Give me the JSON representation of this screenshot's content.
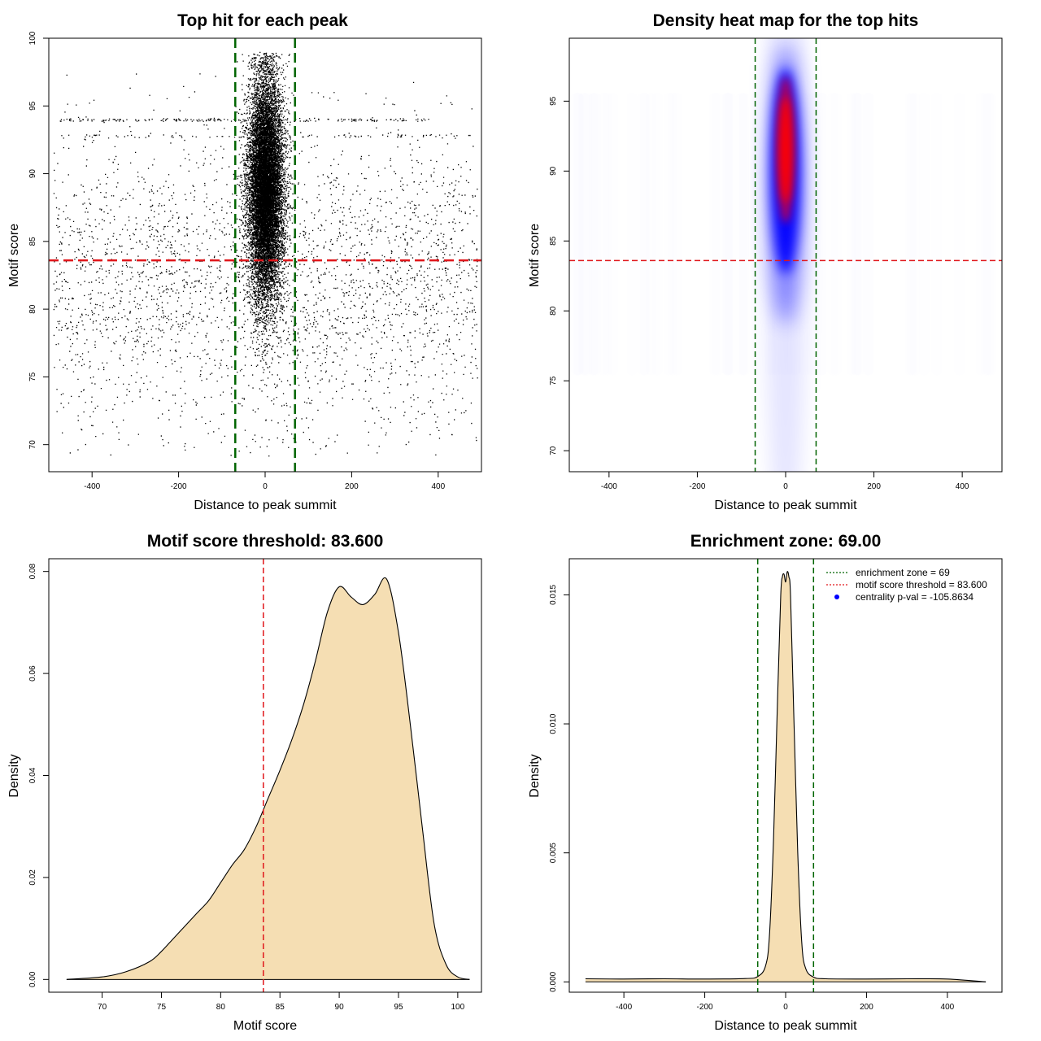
{
  "colors": {
    "threshold_line": "#e0161b",
    "zone_line": "#006400",
    "density_fill": "#f5deb3",
    "heat_low": "#0000ff",
    "heat_high": "#ff0000",
    "points": "#000000"
  },
  "chart_data": [
    {
      "id": "scatter",
      "type": "scatter",
      "title": "Top hit for each peak",
      "xlabel": "Distance to peak summit",
      "ylabel": "Motif score",
      "xlim": [
        -500,
        500
      ],
      "ylim": [
        68,
        100
      ],
      "xticks": [
        "-400",
        "-200",
        "0",
        "200",
        "400"
      ],
      "yticks": [
        "70",
        "75",
        "80",
        "85",
        "90",
        "95",
        "100"
      ],
      "point_count_approx": 22000,
      "background_points": 3000,
      "central_cluster": {
        "x_mean": 0,
        "x_sd": 20,
        "y_mean": 89,
        "y_sd": 4
      },
      "hline": 83.6,
      "vlines": [
        -69,
        69
      ],
      "grid": false
    },
    {
      "id": "heatmap",
      "type": "heatmap",
      "title": "Density heat map for the top hits",
      "xlabel": "Distance to peak summit",
      "ylabel": "Motif score",
      "xlim": [
        -490,
        490
      ],
      "ylim": [
        68.5,
        99.5
      ],
      "xticks": [
        "-400",
        "-200",
        "0",
        "200",
        "400"
      ],
      "yticks": [
        "70",
        "75",
        "80",
        "85",
        "90",
        "95"
      ],
      "peak": {
        "x": 0,
        "y": 91.5
      },
      "hline": 83.6,
      "vlines": [
        -69,
        69
      ],
      "grid": false
    },
    {
      "id": "score-density",
      "type": "area",
      "title": "Motif score threshold: 83.600",
      "xlabel": "Motif score",
      "ylabel": "Density",
      "xlim": [
        65.5,
        102
      ],
      "ylim": [
        -0.0025,
        0.0825
      ],
      "xticks": [
        "70",
        "75",
        "80",
        "85",
        "90",
        "95",
        "100"
      ],
      "yticks": [
        "0.00",
        "0.02",
        "0.04",
        "0.06",
        "0.08"
      ],
      "x": [
        67,
        70,
        72,
        74,
        75,
        76,
        77,
        78,
        79,
        80,
        81,
        82,
        83,
        84,
        85,
        86,
        87,
        88,
        89,
        90,
        91,
        92,
        93,
        94,
        95,
        96,
        97,
        98,
        99,
        100,
        101
      ],
      "y": [
        0.0,
        0.0005,
        0.0015,
        0.0035,
        0.0055,
        0.008,
        0.0105,
        0.013,
        0.0155,
        0.019,
        0.0225,
        0.0255,
        0.03,
        0.0355,
        0.041,
        0.047,
        0.054,
        0.0625,
        0.072,
        0.077,
        0.075,
        0.0735,
        0.0755,
        0.0785,
        0.068,
        0.05,
        0.03,
        0.011,
        0.003,
        0.0005,
        0.0
      ],
      "vline": 83.6,
      "grid": false
    },
    {
      "id": "distance-density",
      "type": "area",
      "title": "Enrichment zone: 69.00",
      "xlabel": "Distance to peak summit",
      "ylabel": "Density",
      "xlim": [
        -535,
        535
      ],
      "ylim": [
        -0.0004,
        0.0164
      ],
      "xticks": [
        "-400",
        "-200",
        "0",
        "200",
        "400"
      ],
      "yticks": [
        "0.000",
        "0.005",
        "0.010",
        "0.015"
      ],
      "x": [
        -495,
        -400,
        -300,
        -200,
        -100,
        -70,
        -50,
        -40,
        -30,
        -20,
        -12,
        -8,
        -4,
        0,
        4,
        8,
        12,
        20,
        30,
        40,
        50,
        70,
        100,
        200,
        300,
        400,
        495
      ],
      "y": [
        0.00012,
        0.00011,
        0.00012,
        0.00011,
        0.00013,
        0.0002,
        0.0006,
        0.0018,
        0.0055,
        0.011,
        0.015,
        0.0157,
        0.0158,
        0.0155,
        0.0159,
        0.0157,
        0.015,
        0.0105,
        0.005,
        0.0015,
        0.0005,
        0.00018,
        0.00012,
        0.00011,
        0.00012,
        0.00011,
        0.0
      ],
      "vlines": [
        -69,
        69
      ],
      "grid": false,
      "legend_position": "top-right",
      "legend": [
        {
          "label": "enrichment zone = 69",
          "color": "#006400",
          "style": "dotted-line"
        },
        {
          "label": "motif score threshold = 83.600",
          "color": "#e0161b",
          "style": "dotted-line"
        },
        {
          "label": "centrality p-val = -105.8634",
          "color": "#0000ff",
          "style": "point"
        }
      ]
    }
  ]
}
